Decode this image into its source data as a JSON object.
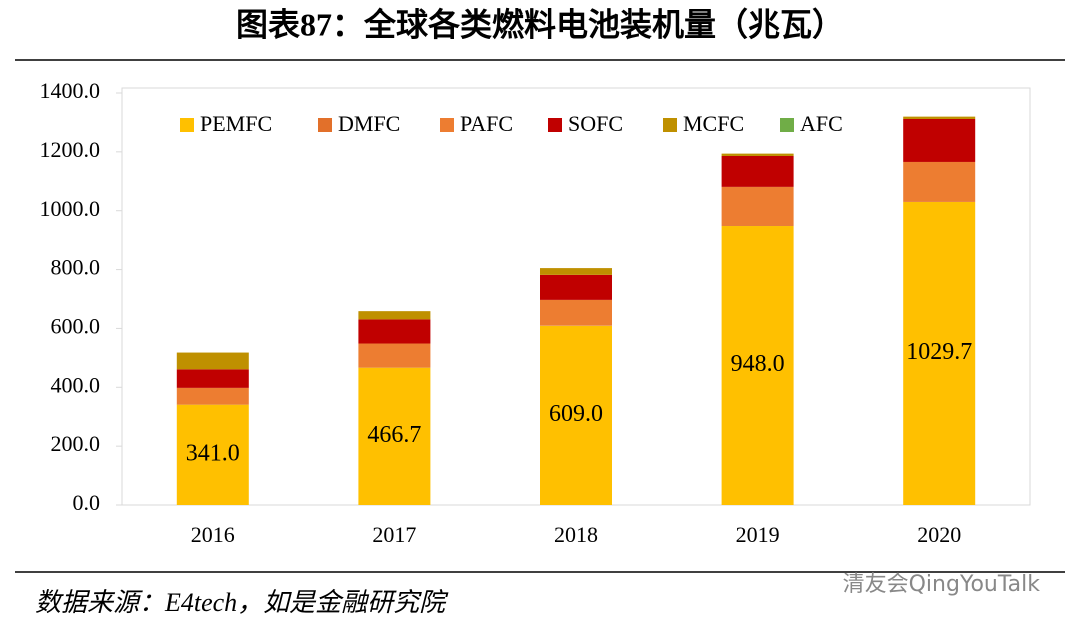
{
  "chart_data": {
    "type": "stacked_bar",
    "title": "图表87：全球各类燃料电池装机量（兆瓦）",
    "source": "数据来源：E4tech，如是金融研究院",
    "watermark": "清友会QingYouTalk",
    "categories": [
      "2016",
      "2017",
      "2018",
      "2019",
      "2020"
    ],
    "series": [
      {
        "name": "PEMFC",
        "color": "#ffc000",
        "values": [
          341.0,
          466.7,
          609.0,
          948.0,
          1029.7
        ],
        "value_labels": [
          "341.0",
          "466.7",
          "609.0",
          "948.0",
          "1029.7"
        ]
      },
      {
        "name": "DMFC",
        "color": "#e2702a",
        "values": [
          2,
          2,
          2,
          2,
          2
        ]
      },
      {
        "name": "PAFC",
        "color": "#ed7d31",
        "values": [
          55,
          80,
          86,
          131,
          134
        ]
      },
      {
        "name": "SOFC",
        "color": "#c00000",
        "values": [
          63,
          82,
          85,
          105,
          146
        ]
      },
      {
        "name": "MCFC",
        "color": "#bf9000",
        "values": [
          57,
          28,
          23,
          8,
          8
        ]
      },
      {
        "name": "AFC",
        "color": "#70ad47",
        "values": [
          0,
          0,
          0,
          0,
          0
        ]
      }
    ],
    "ylim": [
      0,
      1400
    ],
    "yticks": [
      {
        "value": 0,
        "label": "0.0"
      },
      {
        "value": 200,
        "label": "200.0"
      },
      {
        "value": 400,
        "label": "400.0"
      },
      {
        "value": 600,
        "label": "600.0"
      },
      {
        "value": 800,
        "label": "800.0"
      },
      {
        "value": 1000,
        "label": "1000.0"
      },
      {
        "value": 1200,
        "label": "1200.0"
      },
      {
        "value": 1400,
        "label": "1400.0"
      }
    ],
    "legend": "top"
  }
}
